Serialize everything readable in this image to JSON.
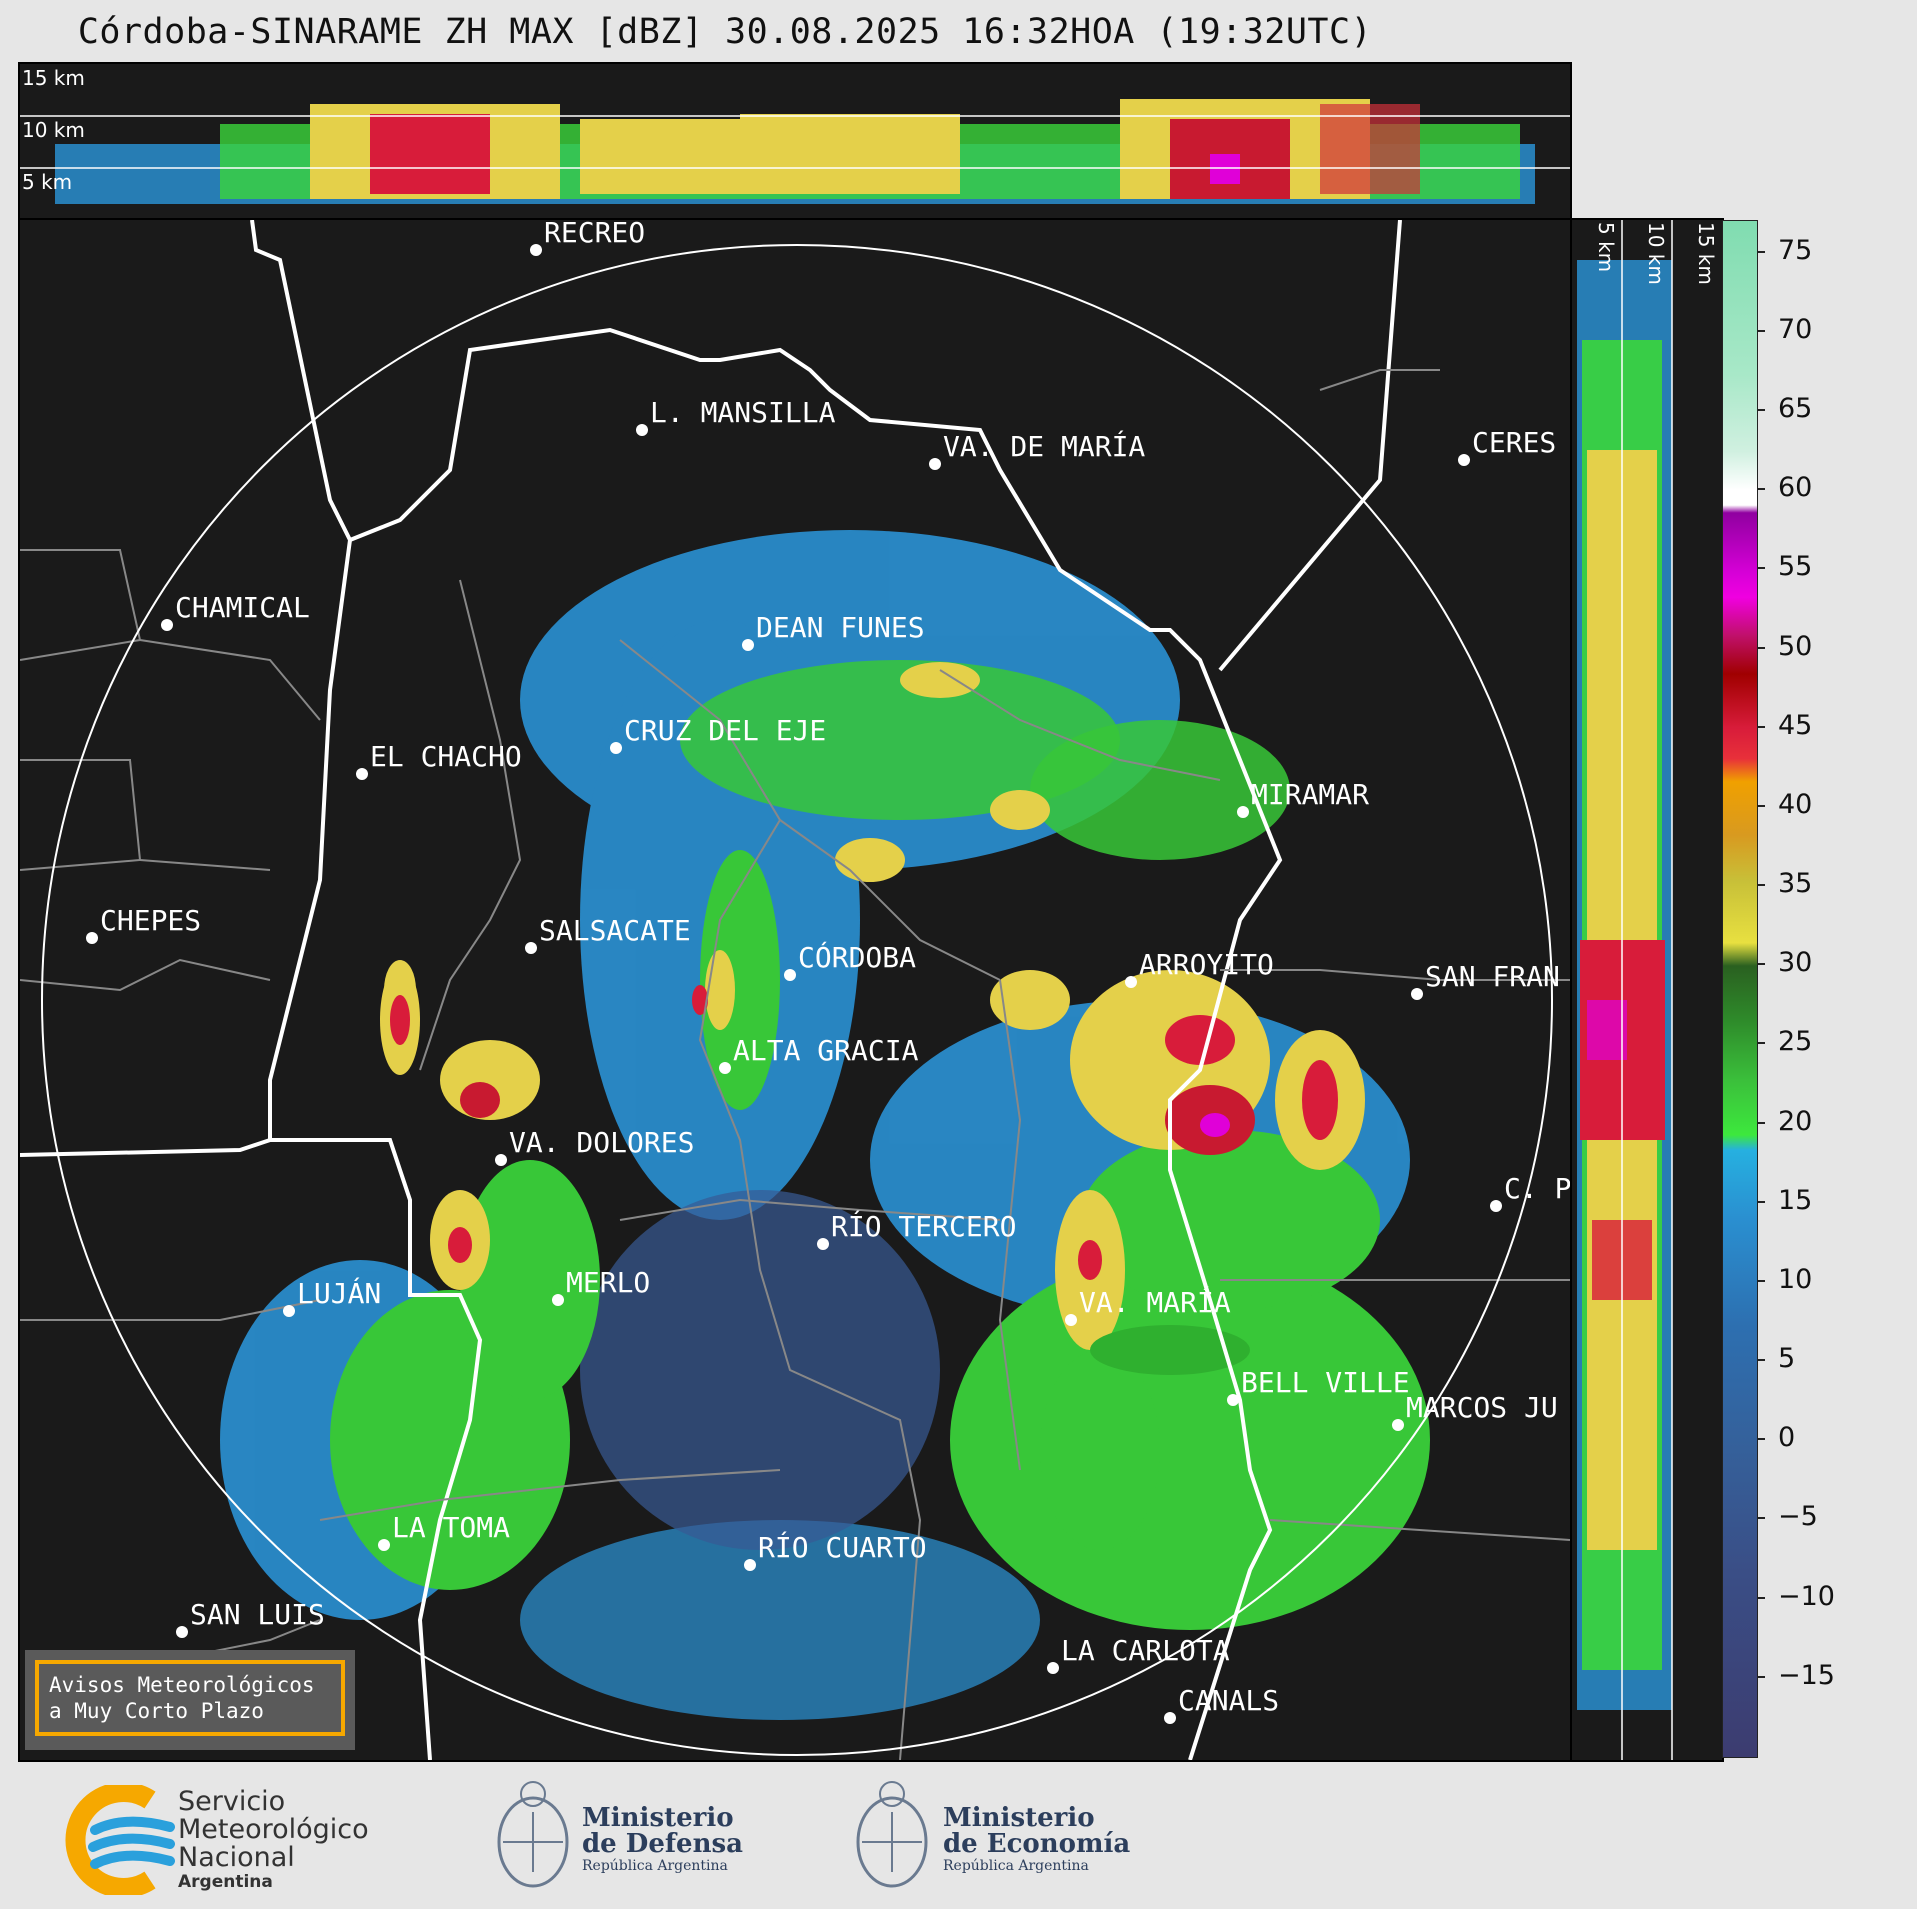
{
  "title": "Córdoba-SINARAME ZH MAX [dBZ] 30.08.2025 16:32HOA (19:32UTC)",
  "altitude_labels": {
    "a15": "15 km",
    "a10": "10 km",
    "a5": "5 km"
  },
  "side_labels": {
    "s5": "5 km",
    "s10": "10 km",
    "s15": "15 km"
  },
  "cities": [
    {
      "id": "recreo",
      "name": "RECREO"
    },
    {
      "id": "l-mansilla",
      "name": "L. MANSILLA"
    },
    {
      "id": "va-de-maria",
      "name": "VA. DE MARÍA"
    },
    {
      "id": "ceres",
      "name": "CERES"
    },
    {
      "id": "chamical",
      "name": "CHAMICAL"
    },
    {
      "id": "dean-funes",
      "name": "DEAN FUNES"
    },
    {
      "id": "cruz-del-eje",
      "name": "CRUZ DEL EJE"
    },
    {
      "id": "el-chacho",
      "name": "EL CHACHO"
    },
    {
      "id": "miramar",
      "name": "MIRAMAR"
    },
    {
      "id": "chepes",
      "name": "CHEPES"
    },
    {
      "id": "salsacate",
      "name": "SALSACATE"
    },
    {
      "id": "cordoba",
      "name": "CÓRDOBA"
    },
    {
      "id": "arroyito",
      "name": "ARROYITO"
    },
    {
      "id": "san-fran",
      "name": "SAN FRAN"
    },
    {
      "id": "alta-gracia",
      "name": "ALTA GRACIA"
    },
    {
      "id": "va-dolores",
      "name": "VA. DOLORES"
    },
    {
      "id": "c-p",
      "name": "C. P"
    },
    {
      "id": "rio-tercero",
      "name": "RÍO TERCERO"
    },
    {
      "id": "lujan",
      "name": "LUJÁN"
    },
    {
      "id": "merlo",
      "name": "MERLO"
    },
    {
      "id": "va-maria",
      "name": "VA. MARÍA"
    },
    {
      "id": "bell-ville",
      "name": "BELL VILLE"
    },
    {
      "id": "marcos-ju",
      "name": "MARCOS JU"
    },
    {
      "id": "la-toma",
      "name": "LA TOMA"
    },
    {
      "id": "rio-cuarto",
      "name": "RÍO CUARTO"
    },
    {
      "id": "san-luis",
      "name": "SAN LUIS"
    },
    {
      "id": "la-carlota",
      "name": "LA CARLOTA"
    },
    {
      "id": "canals",
      "name": "CANALS"
    }
  ],
  "colorbar": {
    "ticks": [
      "75",
      "70",
      "65",
      "60",
      "55",
      "50",
      "45",
      "40",
      "35",
      "30",
      "25",
      "20",
      "15",
      "10",
      "5",
      "0",
      "−5",
      "−10",
      "−15"
    ],
    "range_dbz": [
      -20,
      77
    ]
  },
  "notice": {
    "line1": "Avisos Meteorológicos",
    "line2": "a Muy Corto Plazo"
  },
  "logos": {
    "smn_line1": "Servicio",
    "smn_line2": "Meteorológico",
    "smn_line3": "Nacional",
    "smn_line4": "Argentina",
    "defensa_line1": "Ministerio",
    "defensa_line2": "de Defensa",
    "defensa_line3": "República Argentina",
    "economia_line1": "Ministerio",
    "economia_line2": "de Economía",
    "economia_line3": "República Argentina"
  },
  "colors": {
    "accent_orange": "#f6a800",
    "smn_blue": "#2aa0dc",
    "panel_bg": "#1a1a1a"
  }
}
